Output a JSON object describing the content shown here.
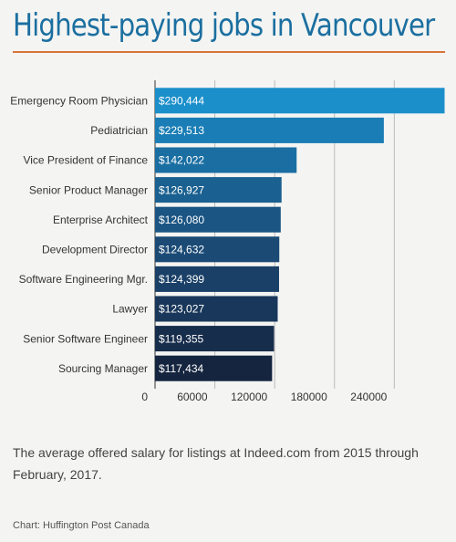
{
  "chart_data": {
    "type": "bar",
    "orientation": "horizontal",
    "title": "Highest-paying jobs in Vancouver",
    "subtitle": "The average offered salary for listings at Indeed.com from 2015 through February, 2017.",
    "source": "Chart: Huffington Post Canada",
    "categories": [
      "Emergency Room Physician",
      "Pediatrician",
      "Vice President of Finance",
      "Senior Product Manager",
      "Enterprise Architect",
      "Development Director",
      "Software Engineering Mgr.",
      "Lawyer",
      "Senior Software Engineer",
      "Sourcing Manager"
    ],
    "values": [
      290444,
      229513,
      142022,
      126927,
      126080,
      124632,
      124399,
      123027,
      119355,
      117434
    ],
    "value_labels": [
      "$290,444",
      "$229,513",
      "$142,022",
      "$126,927",
      "$126,080",
      "$124,632",
      "$124,399",
      "$123,027",
      "$119,355",
      "$117,434"
    ],
    "colors": [
      "#1a8fca",
      "#1a7db5",
      "#1a6ea2",
      "#1a6090",
      "#1b5583",
      "#1b4a75",
      "#1a4068",
      "#19375a",
      "#172d4c",
      "#152540"
    ],
    "xlim": [
      0,
      290000
    ],
    "xticks": [
      0,
      60000,
      120000,
      180000,
      240000
    ],
    "grid": true
  }
}
